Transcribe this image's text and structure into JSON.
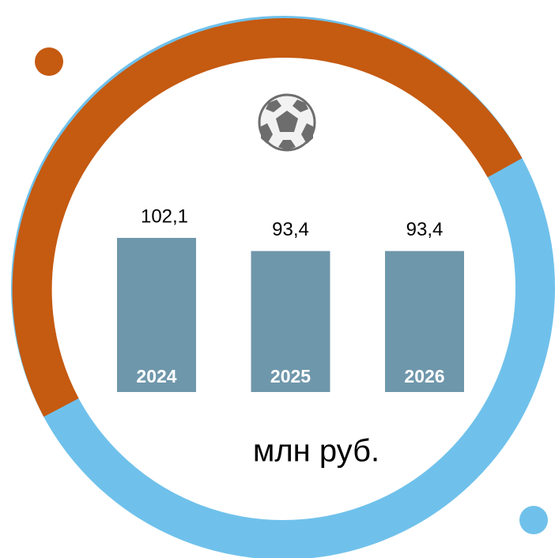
{
  "chart_data": {
    "type": "bar",
    "categories": [
      "2024",
      "2025",
      "2026"
    ],
    "values": [
      102.1,
      93.4,
      93.4
    ],
    "value_labels": [
      "102,1",
      "93,4",
      "93,4"
    ],
    "color": "#6f97ab",
    "unit": "млн руб."
  }
}
